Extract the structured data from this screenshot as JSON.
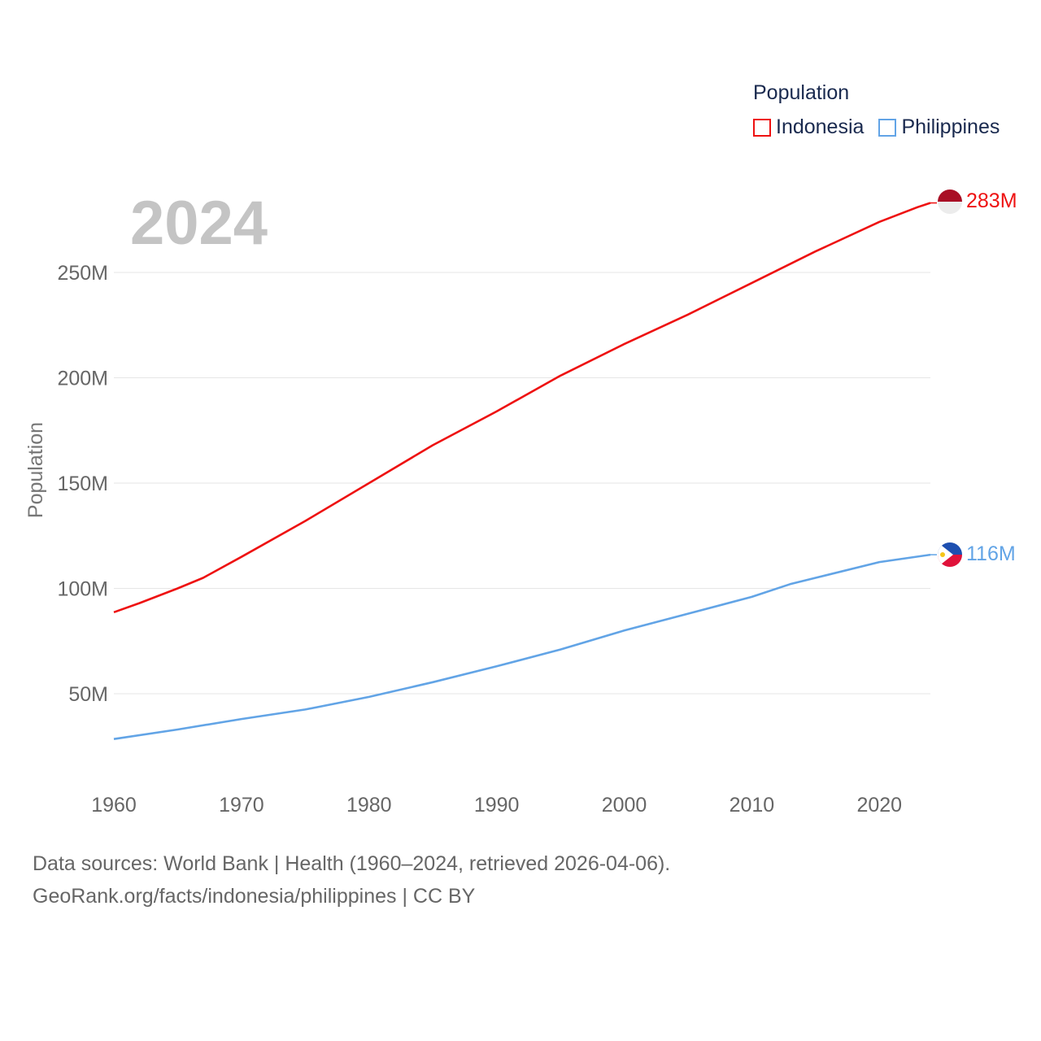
{
  "chart_data": {
    "type": "line",
    "year_label": "2024",
    "ylabel": "Population",
    "xlabel": "",
    "xlim": [
      1960,
      2024
    ],
    "ylim": [
      10000000,
      283000000
    ],
    "x_ticks": [
      "1960",
      "1970",
      "1980",
      "1990",
      "2000",
      "2010",
      "2020"
    ],
    "y_ticks": [
      {
        "value": 50000000,
        "label": "50M"
      },
      {
        "value": 100000000,
        "label": "100M"
      },
      {
        "value": 150000000,
        "label": "150M"
      },
      {
        "value": 200000000,
        "label": "200M"
      },
      {
        "value": 250000000,
        "label": "250M"
      }
    ],
    "legend_title": "Population",
    "series": [
      {
        "name": "Indonesia",
        "color": "#ee1111",
        "end_label": "283M",
        "flag": "indonesia-flag",
        "x": [
          1960,
          1962,
          1965,
          1967,
          1970,
          1975,
          1980,
          1985,
          1990,
          1995,
          2000,
          2005,
          2010,
          2015,
          2020,
          2023,
          2024
        ],
        "values": [
          88700000,
          93000000,
          100000000,
          105000000,
          115000000,
          132000000,
          150000000,
          168000000,
          184000000,
          201000000,
          216000000,
          230000000,
          245000000,
          260000000,
          274000000,
          281000000,
          283000000
        ]
      },
      {
        "name": "Philippines",
        "color": "#62a4e6",
        "end_label": "116M",
        "flag": "philippines-flag",
        "x": [
          1960,
          1965,
          1970,
          1975,
          1980,
          1985,
          1990,
          1995,
          2000,
          2005,
          2010,
          2013,
          2015,
          2020,
          2024
        ],
        "values": [
          28500000,
          33000000,
          38000000,
          42500000,
          48500000,
          55500000,
          63000000,
          71000000,
          80000000,
          88000000,
          96000000,
          102000000,
          105000000,
          112500000,
          116000000
        ]
      }
    ]
  },
  "footer": {
    "line1": "Data sources: World Bank | Health (1960–2024, retrieved 2026-04-06).",
    "line2": "GeoRank.org/facts/indonesia/philippines | CC BY"
  }
}
